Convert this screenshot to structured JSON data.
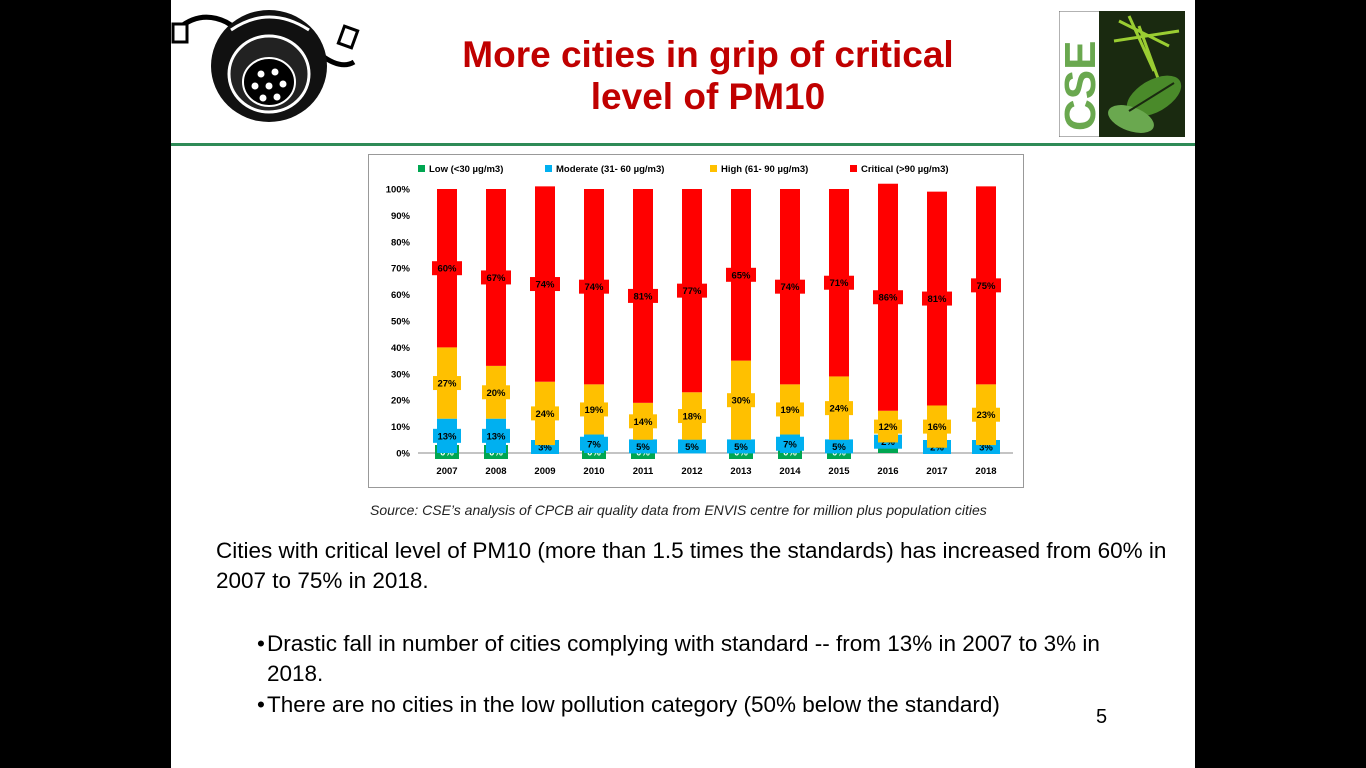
{
  "title": "More cities in grip of critical level of PM10",
  "title_lines": [
    "More cities in grip of critical",
    "level of PM10"
  ],
  "logo_text": "CSE",
  "source": "Source: CSE’s analysis of CPCB air quality data from ENVIS centre for million plus population cities",
  "main_text": "Cities with critical level of PM10 (more than 1.5 times the standards) has increased from 60% in 2007 to 75% in 2018.",
  "bullets": [
    "Drastic fall in number of cities complying with standard -- from 13% in 2007 to 3% in 2018.",
    "There are no cities in the low pollution category (50% below the standard)"
  ],
  "bullet_marker": "•",
  "page_number": "5",
  "chart_data": {
    "type": "bar",
    "stacked": true,
    "categories": [
      "2007",
      "2008",
      "2009",
      "2010",
      "2011",
      "2012",
      "2013",
      "2014",
      "2015",
      "2016",
      "2017",
      "2018"
    ],
    "series": [
      {
        "name": "Low (<30 µg/m3)",
        "color": "#00a651",
        "values": [
          0,
          0,
          0,
          0,
          0,
          0,
          0,
          0,
          0,
          2,
          0,
          0
        ]
      },
      {
        "name": "Moderate (31- 60 µg/m3)",
        "color": "#00b0f0",
        "values": [
          13,
          13,
          3,
          7,
          5,
          5,
          5,
          7,
          5,
          2,
          2,
          3
        ]
      },
      {
        "name": "High (61- 90 µg/m3)",
        "color": "#ffc000",
        "values": [
          27,
          20,
          24,
          19,
          14,
          18,
          30,
          19,
          24,
          12,
          16,
          23
        ]
      },
      {
        "name": "Critical (>90 µg/m3)",
        "color": "#ff0000",
        "values": [
          60,
          67,
          74,
          74,
          81,
          77,
          65,
          74,
          71,
          86,
          81,
          75
        ]
      }
    ],
    "labels": {
      "low": [
        "0%",
        "0%",
        "",
        "0%",
        "0%",
        "",
        "0%",
        "0%",
        "0%",
        "",
        "",
        ""
      ],
      "moderate": [
        "13%",
        "13%",
        "3%",
        "7%",
        "5%",
        "5%",
        "5%",
        "7%",
        "5%",
        "2%",
        "2%",
        "3%"
      ],
      "high": [
        "27%",
        "20%",
        "24%",
        "19%",
        "14%",
        "18%",
        "30%",
        "19%",
        "24%",
        "12%",
        "16%",
        "23%"
      ],
      "critical": [
        "60%",
        "67%",
        "74%",
        "74%",
        "81%",
        "77%",
        "65%",
        "74%",
        "71%",
        "86%",
        "81%",
        "75%"
      ]
    },
    "y_ticks": [
      "0%",
      "10%",
      "20%",
      "30%",
      "40%",
      "50%",
      "60%",
      "70%",
      "80%",
      "90%",
      "100%"
    ],
    "ylim": [
      0,
      100
    ],
    "legend_position": "top",
    "grid": false
  }
}
